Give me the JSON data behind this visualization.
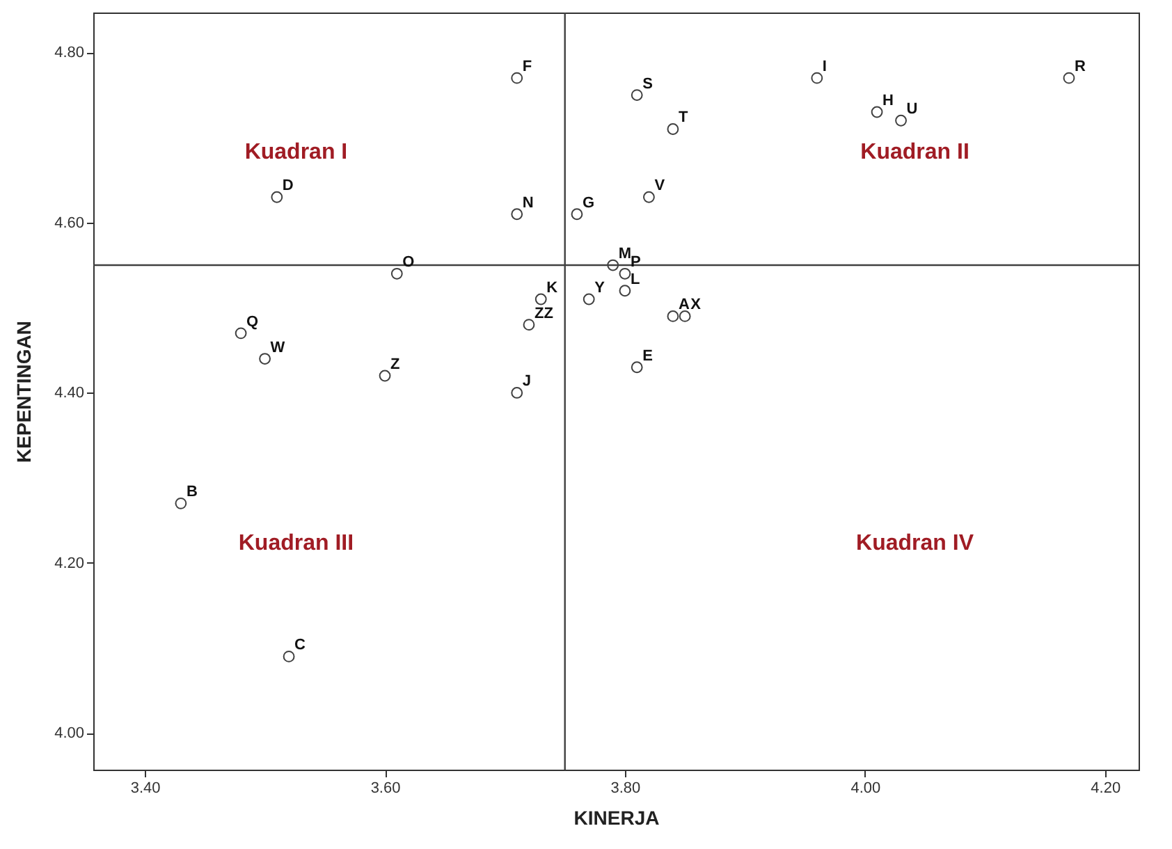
{
  "chart_data": {
    "type": "scatter",
    "xlabel": "KINERJA",
    "ylabel": "KEPENTINGAN",
    "x": [
      3.71,
      3.81,
      3.84,
      3.96,
      4.01,
      4.03,
      4.17,
      3.51,
      3.71,
      3.76,
      3.82,
      3.61,
      3.79,
      3.8,
      3.73,
      3.77,
      3.8,
      3.84,
      3.85,
      3.72,
      3.48,
      3.5,
      3.6,
      3.71,
      3.81,
      3.43,
      3.52
    ],
    "values": [
      4.77,
      4.75,
      4.71,
      4.77,
      4.73,
      4.72,
      4.77,
      4.63,
      4.61,
      4.61,
      4.63,
      4.54,
      4.55,
      4.54,
      4.51,
      4.51,
      4.52,
      4.49,
      4.49,
      4.48,
      4.47,
      4.44,
      4.42,
      4.4,
      4.43,
      4.27,
      4.09
    ],
    "value_labels": [
      "F",
      "S",
      "T",
      "I",
      "H",
      "U",
      "R",
      "D",
      "N",
      "G",
      "V",
      "O",
      "M",
      "P",
      "K",
      "Y",
      "L",
      "A",
      "X",
      "ZZ",
      "Q",
      "W",
      "Z",
      "J",
      "E",
      "B",
      "C"
    ],
    "color": "#404040",
    "marker": "circle",
    "grid": false,
    "xlim": [
      3.357,
      4.228
    ],
    "ylim": [
      3.957,
      4.847
    ],
    "xticks": [
      {
        "value": 3.4,
        "label": "3.40"
      },
      {
        "value": 3.6,
        "label": "3.60"
      },
      {
        "value": 3.8,
        "label": "3.80"
      },
      {
        "value": 4.0,
        "label": "4.00"
      },
      {
        "value": 4.2,
        "label": "4.20"
      }
    ],
    "yticks": [
      {
        "value": 4.0,
        "label": "4.00"
      },
      {
        "value": 4.2,
        "label": "4.20"
      },
      {
        "value": 4.4,
        "label": "4.40"
      },
      {
        "value": 4.6,
        "label": "4.60"
      },
      {
        "value": 4.8,
        "label": "4.80"
      }
    ],
    "ref_lines": [
      {
        "axis": "x",
        "value": 3.75,
        "color": "#404040"
      },
      {
        "axis": "y",
        "value": 4.55,
        "color": "#404040"
      }
    ],
    "annotations": [
      "Kuadran I",
      "Kuadran II",
      "Kuadran III",
      "Kuadran IV"
    ]
  }
}
